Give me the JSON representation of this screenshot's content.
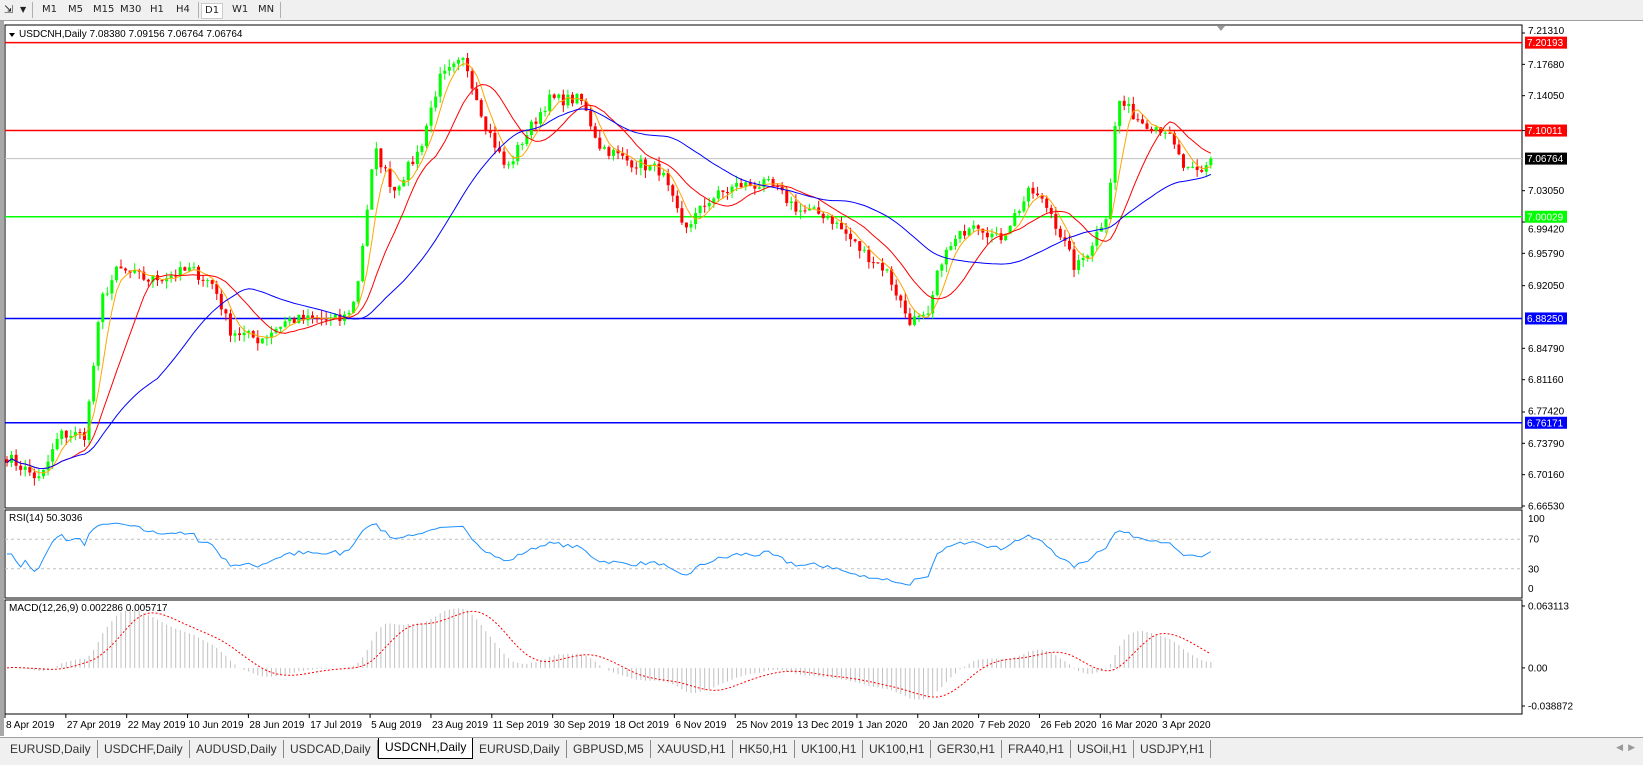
{
  "toolbar": {
    "timeframes": [
      "M1",
      "M5",
      "M15",
      "M30",
      "H1",
      "H4",
      "D1",
      "W1",
      "MN"
    ],
    "active_timeframe": "D1"
  },
  "chart_header": {
    "symbol": "USDCNH,Daily",
    "ohlc": "7.08380 7.09156 7.06764 7.06764"
  },
  "price_axis": {
    "ticks": [
      "7.21310",
      "7.17680",
      "7.14050",
      "7.10011",
      "7.03050",
      "6.99420",
      "6.95790",
      "6.92050",
      "6.84790",
      "6.81160",
      "6.77420",
      "6.73790",
      "6.70160",
      "6.66530"
    ],
    "tick_values": [
      7.2131,
      7.1768,
      7.1405,
      7.1001,
      7.0305,
      6.9942,
      6.9579,
      6.9205,
      6.8479,
      6.8116,
      6.7742,
      6.7379,
      6.7016,
      6.6653
    ],
    "range": [
      6.6653,
      7.2131
    ]
  },
  "levels": [
    {
      "label": "7.20193",
      "value": 7.20193,
      "color": "#ff0000"
    },
    {
      "label": "7.10011",
      "value": 7.10011,
      "color": "#ff0000"
    },
    {
      "label": "7.06764",
      "value": 7.06764,
      "color": "#c0c0c0",
      "tag_color": "#000000"
    },
    {
      "label": "7.00029",
      "value": 7.00029,
      "color": "#00ff00"
    },
    {
      "label": "6.88250",
      "value": 6.8825,
      "color": "#0000ff"
    },
    {
      "label": "6.76171",
      "value": 6.76171,
      "color": "#0000ff"
    }
  ],
  "rsi": {
    "label": "RSI(14) 50.3036",
    "ticks": [
      "100",
      "70",
      "30",
      "0"
    ],
    "levels": [
      70,
      30
    ],
    "color": "#1e90ff"
  },
  "macd": {
    "label": "MACD(12,26,9) 0.002286 0.005717",
    "ticks": [
      "0.063113",
      "0.00",
      "-0.038872"
    ],
    "range": [
      -0.038872,
      0.063113
    ],
    "signal_color": "#ff0000",
    "hist_color": "#c0c0c0"
  },
  "date_axis": [
    "8 Apr 2019",
    "27 Apr 2019",
    "22 May 2019",
    "10 Jun 2019",
    "28 Jun 2019",
    "17 Jul 2019",
    "5 Aug 2019",
    "23 Aug 2019",
    "11 Sep 2019",
    "30 Sep 2019",
    "18 Oct 2019",
    "6 Nov 2019",
    "25 Nov 2019",
    "13 Dec 2019",
    "1 Jan 2020",
    "20 Jan 2020",
    "7 Feb 2020",
    "26 Feb 2020",
    "16 Mar 2020",
    "3 Apr 2020"
  ],
  "colors": {
    "bull": "#00ff00",
    "bear": "#ff0000",
    "ma_fast": "#ffa500",
    "ma_mid": "#ff0000",
    "ma_slow": "#0000ff"
  },
  "chart_data": {
    "type": "candlestick",
    "symbol": "USDCNH",
    "closes": [
      [
        "2019-04-08",
        6.724
      ],
      [
        "2019-04-19",
        6.695
      ],
      [
        "2019-04-25",
        6.748
      ],
      [
        "2019-05-03",
        6.748
      ],
      [
        "2019-05-08",
        6.904
      ],
      [
        "2019-05-13",
        6.939
      ],
      [
        "2019-05-23",
        6.927
      ],
      [
        "2019-06-05",
        6.939
      ],
      [
        "2019-06-12",
        6.921
      ],
      [
        "2019-06-17",
        6.869
      ],
      [
        "2019-06-26",
        6.858
      ],
      [
        "2019-07-05",
        6.881
      ],
      [
        "2019-07-22",
        6.881
      ],
      [
        "2019-07-26",
        6.904
      ],
      [
        "2019-08-01",
        7.078
      ],
      [
        "2019-08-07",
        7.031
      ],
      [
        "2019-08-15",
        7.078
      ],
      [
        "2019-08-21",
        7.159
      ],
      [
        "2019-08-29",
        7.182
      ],
      [
        "2019-09-04",
        7.112
      ],
      [
        "2019-09-11",
        7.054
      ],
      [
        "2019-09-16",
        7.089
      ],
      [
        "2019-09-24",
        7.136
      ],
      [
        "2019-10-04",
        7.136
      ],
      [
        "2019-10-10",
        7.083
      ],
      [
        "2019-10-18",
        7.066
      ],
      [
        "2019-10-29",
        7.054
      ],
      [
        "2019-11-05",
        6.985
      ],
      [
        "2019-11-13",
        7.02
      ],
      [
        "2019-11-22",
        7.037
      ],
      [
        "2019-12-02",
        7.037
      ],
      [
        "2019-12-11",
        7.008
      ],
      [
        "2019-12-20",
        7.002
      ],
      [
        "2019-12-30",
        6.962
      ],
      [
        "2020-01-07",
        6.939
      ],
      [
        "2020-01-14",
        6.881
      ],
      [
        "2020-01-20",
        6.881
      ],
      [
        "2020-01-24",
        6.95
      ],
      [
        "2020-02-03",
        6.997
      ],
      [
        "2020-02-11",
        6.973
      ],
      [
        "2020-02-21",
        7.031
      ],
      [
        "2020-02-27",
        7.008
      ],
      [
        "2020-03-06",
        6.939
      ],
      [
        "2020-03-10",
        6.962
      ],
      [
        "2020-03-16",
        7.008
      ],
      [
        "2020-03-19",
        7.136
      ],
      [
        "2020-03-26",
        7.112
      ],
      [
        "2020-04-03",
        7.101
      ],
      [
        "2020-04-09",
        7.054
      ],
      [
        "2020-04-14",
        7.049
      ],
      [
        "2020-04-17",
        7.06764
      ]
    ]
  },
  "tabs": [
    "EURUSD,Daily",
    "USDCHF,Daily",
    "AUDUSD,Daily",
    "USDCAD,Daily",
    "USDCNH,Daily",
    "EURUSD,Daily",
    "GBPUSD,M5",
    "XAUUSD,H1",
    "HK50,H1",
    "UK100,H1",
    "UK100,H1",
    "GER30,H1",
    "FRA40,H1",
    "USOil,H1",
    "USDJPY,H1"
  ],
  "active_tab": "USDCNH,Daily"
}
